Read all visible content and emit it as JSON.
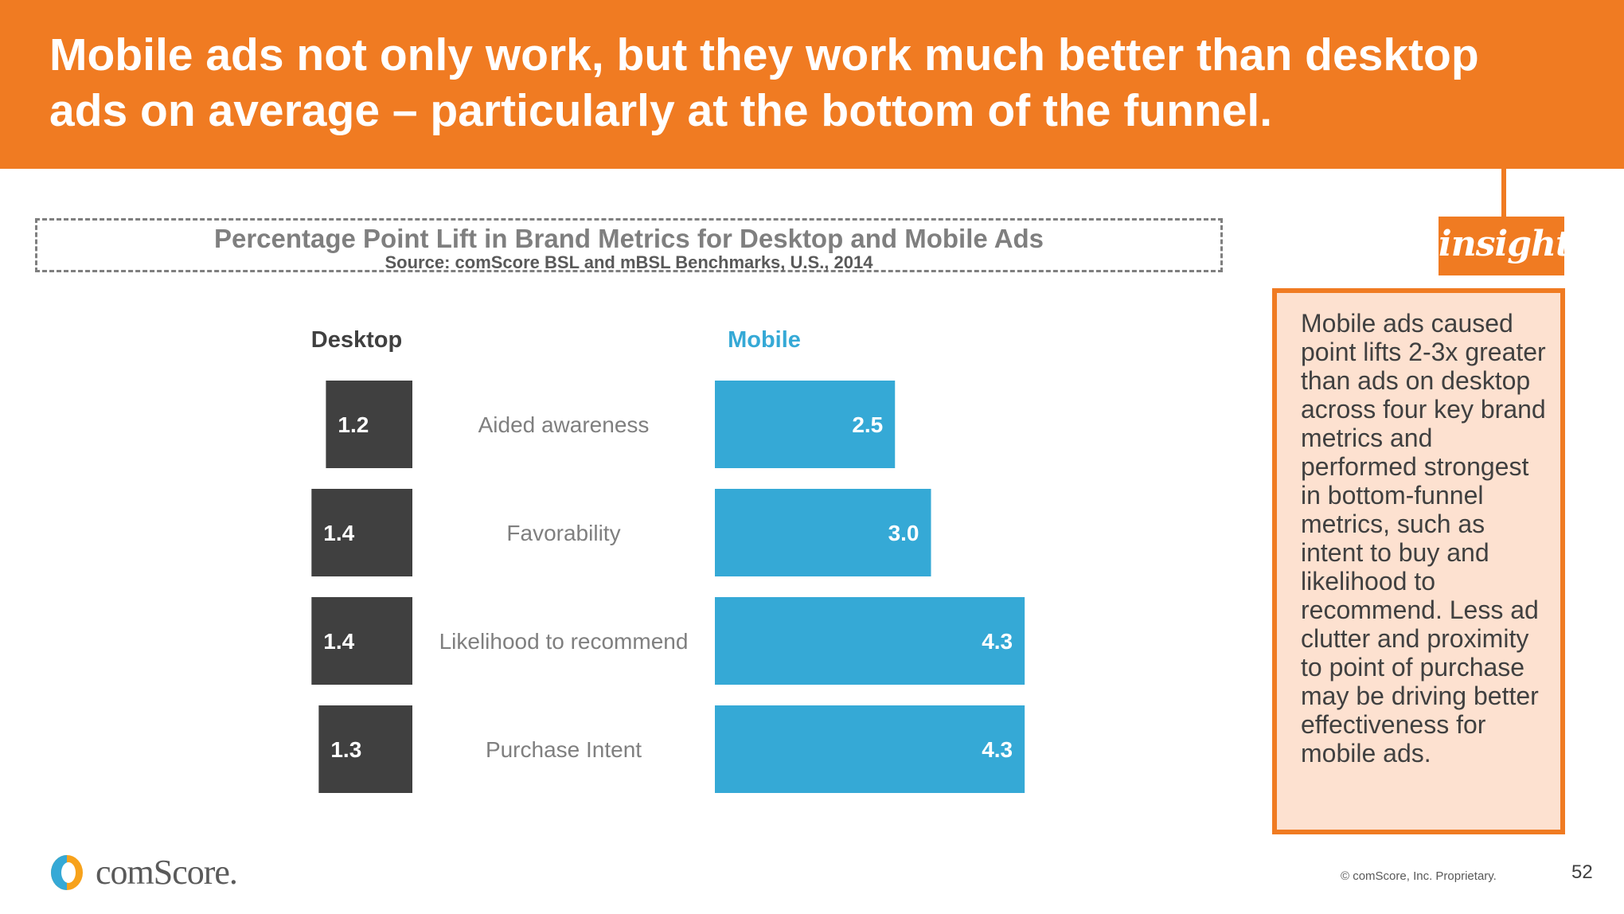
{
  "header": {
    "title_line1": "Mobile ads not only work, but they work much better than desktop",
    "title_line2": "ads on average – particularly at the bottom of the funnel."
  },
  "chart_data": {
    "type": "bar",
    "title": "Percentage Point Lift in Brand Metrics for Desktop and Mobile Ads",
    "subtitle": "Source: comScore BSL and mBSL Benchmarks, U.S., 2014",
    "categories": [
      "Aided awareness",
      "Favorability",
      "Likelihood to recommend",
      "Purchase Intent"
    ],
    "series": [
      {
        "name": "Desktop",
        "values": [
          1.2,
          1.4,
          1.4,
          1.3
        ],
        "color": "#404040"
      },
      {
        "name": "Mobile",
        "values": [
          2.5,
          3.0,
          4.3,
          4.3
        ],
        "color": "#35a9d6"
      }
    ],
    "value_labels": {
      "Desktop": [
        "1.2",
        "1.4",
        "1.4",
        "1.3"
      ],
      "Mobile": [
        "2.5",
        "3.0",
        "4.3",
        "4.3"
      ]
    },
    "orientation": "horizontal-butterfly",
    "grid": false
  },
  "colors": {
    "accent": "#f07b22",
    "desktop": "#404040",
    "mobile": "#35a9d6",
    "insight_background": "#fde1d0"
  },
  "insight": {
    "badge": "insight",
    "text": "Mobile ads caused point lifts 2-3x greater than ads on desktop across four key brand metrics and performed strongest in bottom-funnel metrics, such as intent to buy and likelihood to recommend. Less ad clutter and proximity to point of purchase may be driving better effectiveness for mobile ads."
  },
  "footer": {
    "logo_icon": "comscore-logo-icon",
    "logo_text": "comScore.",
    "copyright": "© comScore, Inc. Proprietary.",
    "page_number": "52"
  }
}
